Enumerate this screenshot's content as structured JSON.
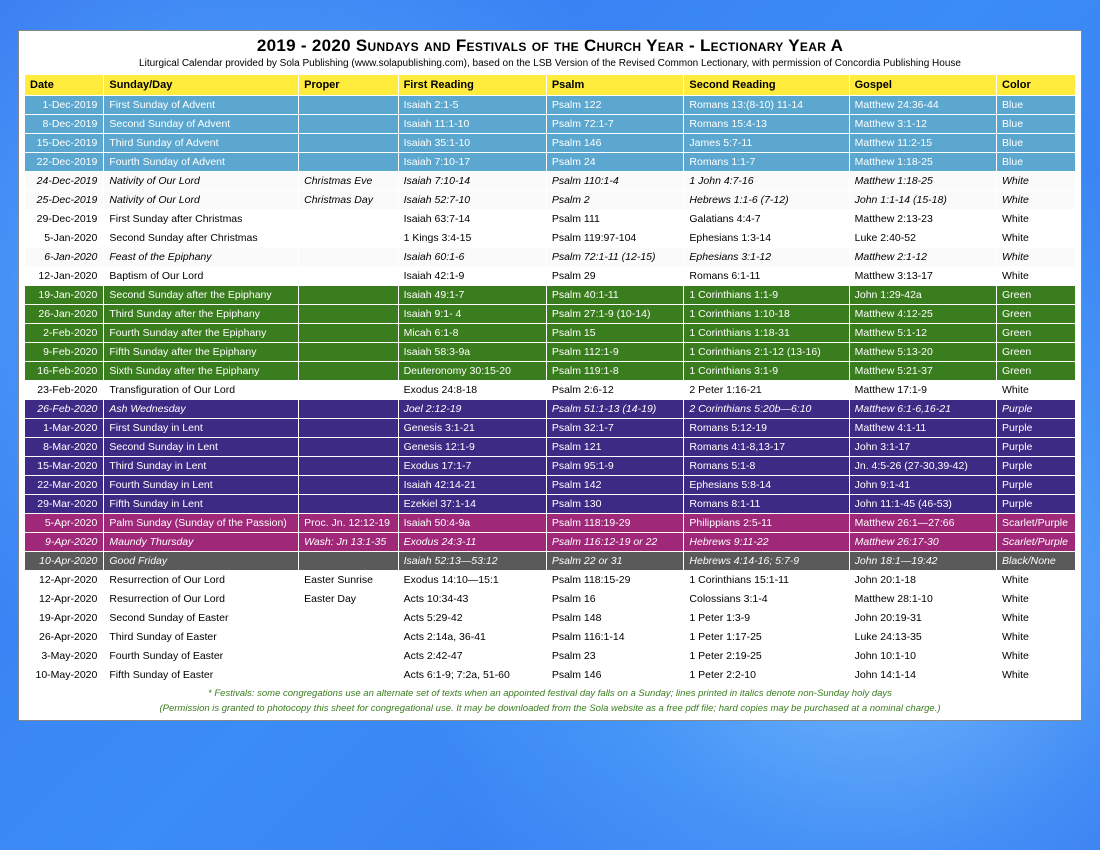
{
  "title": "2019 - 2020 Sundays and Festivals of the Church Year - Lectionary Year A",
  "subtitle": "Liturgical Calendar provided by Sola Publishing (www.solapublishing.com), based on the LSB Version of the Revised Common Lectionary, with permission of Concordia Publishing House",
  "columns": [
    "Date",
    "Sunday/Day",
    "Proper",
    "First Reading",
    "Psalm",
    "Second Reading",
    "Gospel",
    "Color"
  ],
  "footnotes": [
    "* Festivals: some congregations use an alternate set of texts when an appointed festival day falls on a Sunday; lines printed in italics denote non-Sunday holy days",
    "(Permission is granted to photocopy this sheet for congregational use. It may be downloaded from the Sola website as a free pdf file; hard copies may be purchased at a nominal charge.)"
  ],
  "rows": [
    {
      "theme": "blue",
      "date": "1-Dec-2019",
      "day": "First Sunday of Advent",
      "proper": "",
      "first": "Isaiah 2:1-5",
      "psalm": "Psalm 122",
      "second": "Romans 13:(8-10) 11-14",
      "gospel": "Matthew 24:36-44",
      "color": "Blue"
    },
    {
      "theme": "blue",
      "date": "8-Dec-2019",
      "day": "Second Sunday of Advent",
      "proper": "",
      "first": "Isaiah 11:1-10",
      "psalm": "Psalm 72:1-7",
      "second": "Romans 15:4-13",
      "gospel": "Matthew 3:1-12",
      "color": "Blue"
    },
    {
      "theme": "blue",
      "date": "15-Dec-2019",
      "day": "Third Sunday of Advent",
      "proper": "",
      "first": "Isaiah 35:1-10",
      "psalm": "Psalm 146",
      "second": "James 5:7-11",
      "gospel": "Matthew 11:2-15",
      "color": "Blue"
    },
    {
      "theme": "blue",
      "date": "22-Dec-2019",
      "day": "Fourth Sunday of Advent",
      "proper": "",
      "first": "Isaiah 7:10-17",
      "psalm": "Psalm 24",
      "second": "Romans 1:1-7",
      "gospel": "Matthew 1:18-25",
      "color": "Blue"
    },
    {
      "theme": "white",
      "italic": true,
      "date": "24-Dec-2019",
      "day": "Nativity of Our Lord",
      "proper": "Christmas Eve",
      "first": "Isaiah 7:10-14",
      "psalm": "Psalm 110:1-4",
      "second": "1 John 4:7-16",
      "gospel": "Matthew 1:18-25",
      "color": "White"
    },
    {
      "theme": "white",
      "italic": true,
      "date": "25-Dec-2019",
      "day": "Nativity of Our Lord",
      "proper": "Christmas Day",
      "first": "Isaiah 52:7-10",
      "psalm": "Psalm 2",
      "second": "Hebrews 1:1-6 (7-12)",
      "gospel": "John 1:1-14 (15-18)",
      "color": "White"
    },
    {
      "theme": "white",
      "date": "29-Dec-2019",
      "day": "First Sunday after Christmas",
      "proper": "",
      "first": "Isaiah 63:7-14",
      "psalm": "Psalm 111",
      "second": "Galatians 4:4-7",
      "gospel": "Matthew 2:13-23",
      "color": "White"
    },
    {
      "theme": "white",
      "date": "5-Jan-2020",
      "day": "Second Sunday after Christmas",
      "proper": "",
      "first": "1 Kings 3:4-15",
      "psalm": "Psalm 119:97-104",
      "second": "Ephesians 1:3-14",
      "gospel": "Luke 2:40-52",
      "color": "White"
    },
    {
      "theme": "white",
      "italic": true,
      "date": "6-Jan-2020",
      "day": "Feast of the Epiphany",
      "proper": "",
      "first": "Isaiah 60:1-6",
      "psalm": "Psalm 72:1-11 (12-15)",
      "second": "Ephesians 3:1-12",
      "gospel": "Matthew 2:1-12",
      "color": "White"
    },
    {
      "theme": "white",
      "date": "12-Jan-2020",
      "day": "Baptism of Our Lord",
      "proper": "",
      "first": "Isaiah 42:1-9",
      "psalm": "Psalm 29",
      "second": "Romans 6:1-11",
      "gospel": "Matthew 3:13-17",
      "color": "White"
    },
    {
      "theme": "green",
      "date": "19-Jan-2020",
      "day": "Second Sunday after the Epiphany",
      "proper": "",
      "first": "Isaiah 49:1-7",
      "psalm": "Psalm 40:1-11",
      "second": "1 Corinthians 1:1-9",
      "gospel": "John 1:29-42a",
      "color": "Green"
    },
    {
      "theme": "green",
      "date": "26-Jan-2020",
      "day": "Third Sunday after the Epiphany",
      "proper": "",
      "first": "Isaiah 9:1- 4",
      "psalm": "Psalm 27:1-9 (10-14)",
      "second": "1 Corinthians 1:10-18",
      "gospel": "Matthew 4:12-25",
      "color": "Green"
    },
    {
      "theme": "green",
      "date": "2-Feb-2020",
      "day": "Fourth Sunday after the Epiphany",
      "proper": "",
      "first": "Micah 6:1-8",
      "psalm": "Psalm 15",
      "second": "1 Corinthians 1:18-31",
      "gospel": "Matthew 5:1-12",
      "color": "Green"
    },
    {
      "theme": "green",
      "date": "9-Feb-2020",
      "day": "Fifth Sunday after the Epiphany",
      "proper": "",
      "first": "Isaiah 58:3-9a",
      "psalm": "Psalm 112:1-9",
      "second": "1 Corinthians 2:1-12 (13-16)",
      "gospel": "Matthew 5:13-20",
      "color": "Green"
    },
    {
      "theme": "green",
      "date": "16-Feb-2020",
      "day": "Sixth Sunday after the Epiphany",
      "proper": "",
      "first": "Deuteronomy 30:15-20",
      "psalm": "Psalm 119:1-8",
      "second": "1 Corinthians 3:1-9",
      "gospel": "Matthew 5:21-37",
      "color": "Green"
    },
    {
      "theme": "white",
      "date": "23-Feb-2020",
      "day": "Transfiguration of Our Lord",
      "proper": "",
      "first": "Exodus 24:8-18",
      "psalm": "Psalm 2:6-12",
      "second": "2 Peter 1:16-21",
      "gospel": "Matthew 17:1-9",
      "color": "White"
    },
    {
      "theme": "purple",
      "italic": true,
      "date": "26-Feb-2020",
      "day": "Ash Wednesday",
      "proper": "",
      "first": "Joel 2:12-19",
      "psalm": "Psalm 51:1-13 (14-19)",
      "second": "2 Corinthians 5:20b—6:10",
      "gospel": "Matthew 6:1-6,16-21",
      "color": "Purple"
    },
    {
      "theme": "purple",
      "date": "1-Mar-2020",
      "day": "First Sunday in Lent",
      "proper": "",
      "first": "Genesis 3:1-21",
      "psalm": "Psalm 32:1-7",
      "second": "Romans 5:12-19",
      "gospel": "Matthew 4:1-11",
      "color": "Purple"
    },
    {
      "theme": "purple",
      "date": "8-Mar-2020",
      "day": "Second Sunday in Lent",
      "proper": "",
      "first": "Genesis 12:1-9",
      "psalm": "Psalm 121",
      "second": "Romans 4:1-8,13-17",
      "gospel": "John 3:1-17",
      "color": "Purple"
    },
    {
      "theme": "purple",
      "date": "15-Mar-2020",
      "day": "Third Sunday in Lent",
      "proper": "",
      "first": "Exodus 17:1-7",
      "psalm": "Psalm 95:1-9",
      "second": "Romans 5:1-8",
      "gospel": "Jn. 4:5-26 (27-30,39-42)",
      "color": "Purple"
    },
    {
      "theme": "purple",
      "date": "22-Mar-2020",
      "day": "Fourth Sunday in Lent",
      "proper": "",
      "first": "Isaiah 42:14-21",
      "psalm": "Psalm 142",
      "second": "Ephesians 5:8-14",
      "gospel": "John 9:1-41",
      "color": "Purple"
    },
    {
      "theme": "purple",
      "date": "29-Mar-2020",
      "day": "Fifth Sunday in Lent",
      "proper": "",
      "first": "Ezekiel 37:1-14",
      "psalm": "Psalm 130",
      "second": "Romans 8:1-11",
      "gospel": "John 11:1-45 (46-53)",
      "color": "Purple"
    },
    {
      "theme": "scarlet",
      "date": "5-Apr-2020",
      "day": "Palm Sunday (Sunday of the Passion)",
      "proper": "Proc. Jn. 12:12-19",
      "first": "Isaiah 50:4-9a",
      "psalm": "Psalm 118:19-29",
      "second": "Philippians 2:5-11",
      "gospel": "Matthew 26:1—27:66",
      "color": "Scarlet/Purple"
    },
    {
      "theme": "scarlet",
      "italic": true,
      "date": "9-Apr-2020",
      "day": "Maundy Thursday",
      "proper": "Wash: Jn 13:1-35",
      "first": "Exodus 24:3-11",
      "psalm": "Psalm 116:12-19 or 22",
      "second": "Hebrews 9:11-22",
      "gospel": "Matthew 26:17-30",
      "color": "Scarlet/Purple"
    },
    {
      "theme": "black",
      "italic": true,
      "date": "10-Apr-2020",
      "day": "Good Friday",
      "proper": "",
      "first": "Isaiah 52:13—53:12",
      "psalm": "Psalm 22 or 31",
      "second": "Hebrews 4:14-16; 5:7-9",
      "gospel": "John 18:1—19:42",
      "color": "Black/None"
    },
    {
      "theme": "white",
      "date": "12-Apr-2020",
      "day": "Resurrection of Our Lord",
      "proper": "Easter Sunrise",
      "first": "Exodus 14:10—15:1",
      "psalm": "Psalm 118:15-29",
      "second": "1 Corinthians 15:1-11",
      "gospel": "John 20:1-18",
      "color": "White"
    },
    {
      "theme": "white",
      "date": "12-Apr-2020",
      "day": "Resurrection of Our Lord",
      "proper": "Easter Day",
      "first": "Acts 10:34-43",
      "psalm": "Psalm 16",
      "second": "Colossians 3:1-4",
      "gospel": "Matthew 28:1-10",
      "color": "White"
    },
    {
      "theme": "white",
      "date": "19-Apr-2020",
      "day": "Second Sunday of Easter",
      "proper": "",
      "first": "Acts 5:29-42",
      "psalm": "Psalm 148",
      "second": "1 Peter 1:3-9",
      "gospel": "John 20:19-31",
      "color": "White"
    },
    {
      "theme": "white",
      "date": "26-Apr-2020",
      "day": "Third Sunday of Easter",
      "proper": "",
      "first": "Acts 2:14a, 36-41",
      "psalm": "Psalm 116:1-14",
      "second": "1 Peter 1:17-25",
      "gospel": "Luke 24:13-35",
      "color": "White"
    },
    {
      "theme": "white",
      "date": "3-May-2020",
      "day": "Fourth Sunday of Easter",
      "proper": "",
      "first": "Acts 2:42-47",
      "psalm": "Psalm 23",
      "second": "1 Peter 2:19-25",
      "gospel": "John 10:1-10",
      "color": "White"
    },
    {
      "theme": "white",
      "date": "10-May-2020",
      "day": "Fifth Sunday of Easter",
      "proper": "",
      "first": "Acts 6:1-9; 7:2a, 51-60",
      "psalm": "Psalm 146",
      "second": "1 Peter 2:2-10",
      "gospel": "John 14:1-14",
      "color": "White"
    }
  ]
}
